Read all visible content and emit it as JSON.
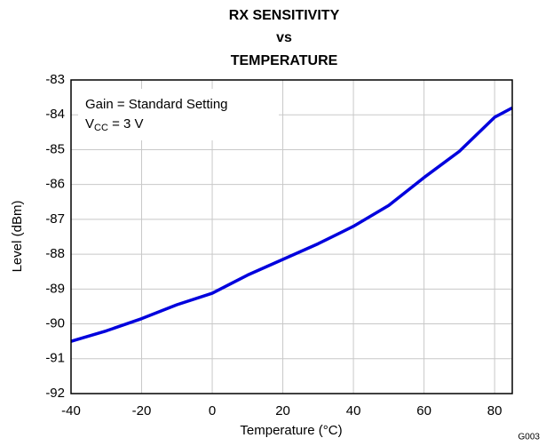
{
  "chart_data": {
    "type": "line",
    "title": [
      "RX SENSITIVITY",
      "vs",
      "TEMPERATURE"
    ],
    "xlabel": "Temperature (°C)",
    "ylabel": "Level (dBm)",
    "annotations": {
      "line1": "Gain = Standard Setting",
      "line2": {
        "main": "V",
        "sub": "CC",
        "tail": " = 3 V"
      }
    },
    "figure_id": "G003",
    "x": [
      -40,
      -30,
      -20,
      -10,
      0,
      10,
      20,
      30,
      40,
      50,
      60,
      70,
      80,
      85
    ],
    "series": [
      {
        "name": "Level",
        "color": "#0000dd",
        "values": [
          -90.5,
          -90.2,
          -89.85,
          -89.45,
          -89.12,
          -88.6,
          -88.15,
          -87.7,
          -87.2,
          -86.6,
          -85.8,
          -85.05,
          -84.07,
          -83.8
        ]
      }
    ],
    "xlim": [
      -40,
      85
    ],
    "xticks": [
      -40,
      -20,
      0,
      20,
      40,
      60,
      80
    ],
    "ylim": [
      -92,
      -83
    ],
    "yticks": [
      -92,
      -91,
      -90,
      -89,
      -88,
      -87,
      -86,
      -85,
      -84,
      -83
    ],
    "grid": true,
    "legend": false
  }
}
